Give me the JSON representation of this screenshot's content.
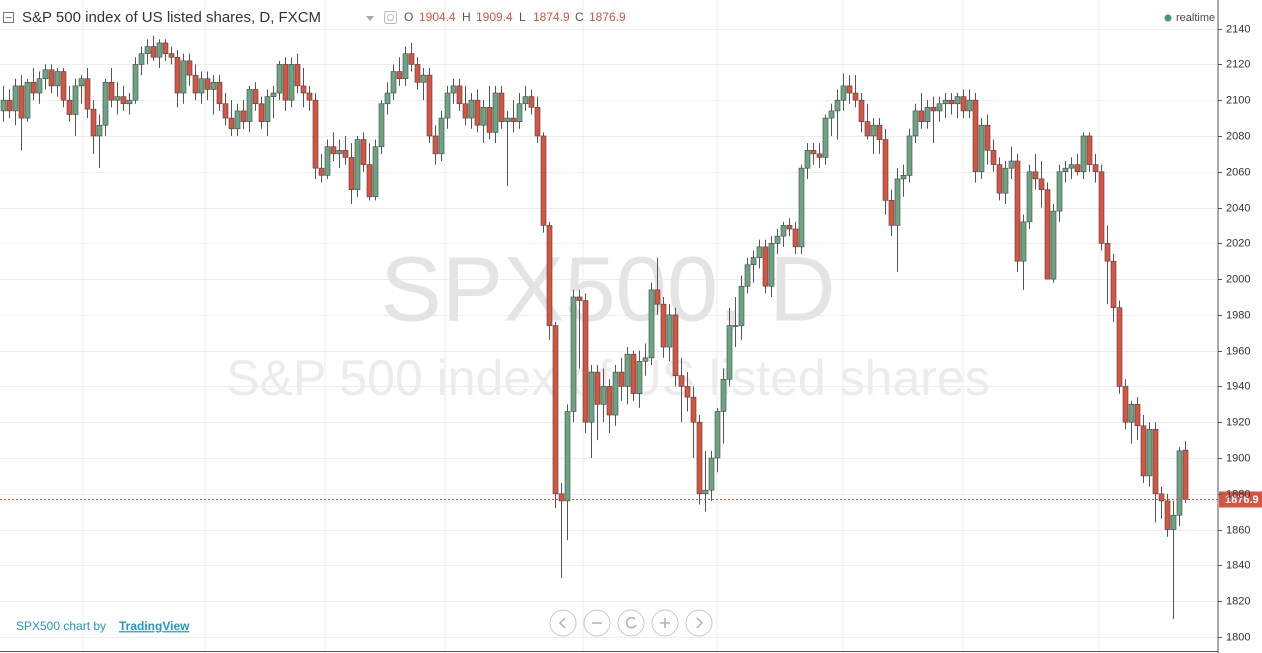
{
  "chart_data": {
    "type": "candlestick",
    "title": "S&P 500 index of US listed shares, D, FXCM",
    "status": "realtime",
    "watermark_symbol": "SPX500, D",
    "watermark_name": "S&P 500 index of US listed shares",
    "credit": "SPX500 chart by",
    "credit_link": "TradingView",
    "ohlc_labels": [
      "O",
      "H",
      "L",
      "C"
    ],
    "up_color": "#6ba583",
    "down_color": "#d75442",
    "ylim": [
      1791,
      2156
    ],
    "yticks": [
      1800,
      1820,
      1840,
      1860,
      1880,
      1900,
      1920,
      1940,
      1960,
      1980,
      2000,
      2020,
      2040,
      2060,
      2080,
      2100,
      2120,
      2140
    ],
    "grid": true,
    "ohlc": [
      [
        2094,
        2108,
        2088,
        2100
      ],
      [
        2100,
        2106,
        2090,
        2094
      ],
      [
        2094,
        2112,
        2086,
        2108
      ],
      [
        2108,
        2114,
        2072,
        2090
      ],
      [
        2090,
        2112,
        2088,
        2110
      ],
      [
        2110,
        2118,
        2100,
        2104
      ],
      [
        2104,
        2116,
        2098,
        2112
      ],
      [
        2112,
        2120,
        2106,
        2117
      ],
      [
        2117,
        2120,
        2104,
        2108
      ],
      [
        2108,
        2118,
        2102,
        2116
      ],
      [
        2116,
        2118,
        2096,
        2100
      ],
      [
        2100,
        2108,
        2088,
        2092
      ],
      [
        2092,
        2112,
        2080,
        2108
      ],
      [
        2108,
        2114,
        2098,
        2112
      ],
      [
        2112,
        2118,
        2090,
        2095
      ],
      [
        2095,
        2100,
        2070,
        2080
      ],
      [
        2080,
        2092,
        2062,
        2086
      ],
      [
        2086,
        2112,
        2080,
        2110
      ],
      [
        2110,
        2118,
        2096,
        2100
      ],
      [
        2100,
        2110,
        2092,
        2102
      ],
      [
        2102,
        2108,
        2094,
        2098
      ],
      [
        2098,
        2104,
        2092,
        2100
      ],
      [
        2100,
        2124,
        2098,
        2120
      ],
      [
        2120,
        2130,
        2114,
        2126
      ],
      [
        2126,
        2134,
        2120,
        2130
      ],
      [
        2130,
        2136,
        2122,
        2124
      ],
      [
        2124,
        2134,
        2118,
        2132
      ],
      [
        2132,
        2134,
        2122,
        2126
      ],
      [
        2126,
        2130,
        2120,
        2124
      ],
      [
        2124,
        2128,
        2096,
        2104
      ],
      [
        2104,
        2126,
        2098,
        2122
      ],
      [
        2122,
        2126,
        2108,
        2114
      ],
      [
        2114,
        2120,
        2100,
        2104
      ],
      [
        2104,
        2116,
        2098,
        2112
      ],
      [
        2112,
        2116,
        2100,
        2106
      ],
      [
        2106,
        2114,
        2092,
        2110
      ],
      [
        2110,
        2114,
        2094,
        2098
      ],
      [
        2098,
        2104,
        2086,
        2090
      ],
      [
        2090,
        2100,
        2080,
        2084
      ],
      [
        2084,
        2098,
        2080,
        2094
      ],
      [
        2094,
        2100,
        2084,
        2088
      ],
      [
        2088,
        2108,
        2082,
        2106
      ],
      [
        2106,
        2110,
        2094,
        2098
      ],
      [
        2098,
        2102,
        2084,
        2088
      ],
      [
        2088,
        2106,
        2080,
        2102
      ],
      [
        2102,
        2108,
        2090,
        2104
      ],
      [
        2104,
        2122,
        2100,
        2120
      ],
      [
        2120,
        2124,
        2094,
        2100
      ],
      [
        2100,
        2124,
        2096,
        2120
      ],
      [
        2120,
        2126,
        2104,
        2108
      ],
      [
        2108,
        2118,
        2096,
        2104
      ],
      [
        2104,
        2108,
        2094,
        2100
      ],
      [
        2100,
        2104,
        2056,
        2062
      ],
      [
        2062,
        2070,
        2054,
        2058
      ],
      [
        2058,
        2078,
        2056,
        2074
      ],
      [
        2074,
        2082,
        2066,
        2070
      ],
      [
        2070,
        2078,
        2062,
        2072
      ],
      [
        2072,
        2080,
        2064,
        2068
      ],
      [
        2068,
        2076,
        2042,
        2050
      ],
      [
        2050,
        2080,
        2046,
        2078
      ],
      [
        2078,
        2082,
        2060,
        2064
      ],
      [
        2064,
        2076,
        2044,
        2046
      ],
      [
        2046,
        2078,
        2044,
        2074
      ],
      [
        2074,
        2100,
        2070,
        2098
      ],
      [
        2098,
        2110,
        2092,
        2104
      ],
      [
        2104,
        2120,
        2100,
        2116
      ],
      [
        2116,
        2124,
        2108,
        2112
      ],
      [
        2112,
        2130,
        2108,
        2126
      ],
      [
        2126,
        2132,
        2116,
        2120
      ],
      [
        2120,
        2124,
        2106,
        2110
      ],
      [
        2110,
        2118,
        2100,
        2114
      ],
      [
        2114,
        2118,
        2076,
        2080
      ],
      [
        2080,
        2086,
        2064,
        2070
      ],
      [
        2070,
        2094,
        2066,
        2090
      ],
      [
        2090,
        2108,
        2084,
        2104
      ],
      [
        2104,
        2112,
        2098,
        2108
      ],
      [
        2108,
        2112,
        2094,
        2098
      ],
      [
        2098,
        2108,
        2086,
        2090
      ],
      [
        2090,
        2104,
        2084,
        2100
      ],
      [
        2100,
        2106,
        2082,
        2086
      ],
      [
        2086,
        2100,
        2076,
        2096
      ],
      [
        2096,
        2108,
        2078,
        2082
      ],
      [
        2082,
        2108,
        2076,
        2104
      ],
      [
        2104,
        2108,
        2084,
        2088
      ],
      [
        2088,
        2094,
        2052,
        2090
      ],
      [
        2090,
        2100,
        2082,
        2088
      ],
      [
        2088,
        2104,
        2084,
        2098
      ],
      [
        2098,
        2108,
        2094,
        2102
      ],
      [
        2102,
        2106,
        2092,
        2096
      ],
      [
        2096,
        2102,
        2076,
        2080
      ],
      [
        2080,
        2082,
        2026,
        2030
      ],
      [
        2030,
        2032,
        1966,
        1974
      ],
      [
        1974,
        1976,
        1872,
        1880
      ],
      [
        1880,
        1886,
        1833,
        1876
      ],
      [
        1876,
        1930,
        1854,
        1926
      ],
      [
        1926,
        1994,
        1920,
        1990
      ],
      [
        1990,
        1994,
        1950,
        1988
      ],
      [
        1988,
        1992,
        1914,
        1920
      ],
      [
        1920,
        1952,
        1900,
        1948
      ],
      [
        1948,
        1952,
        1910,
        1930
      ],
      [
        1930,
        1950,
        1920,
        1940
      ],
      [
        1940,
        1944,
        1914,
        1924
      ],
      [
        1924,
        1952,
        1918,
        1948
      ],
      [
        1948,
        1956,
        1932,
        1940
      ],
      [
        1940,
        1962,
        1930,
        1958
      ],
      [
        1958,
        1960,
        1932,
        1936
      ],
      [
        1936,
        1960,
        1928,
        1954
      ],
      [
        1954,
        1964,
        1946,
        1956
      ],
      [
        1956,
        1998,
        1952,
        1994
      ],
      [
        1994,
        2012,
        1980,
        1986
      ],
      [
        1986,
        1990,
        1956,
        1962
      ],
      [
        1962,
        1986,
        1954,
        1980
      ],
      [
        1980,
        1984,
        1940,
        1946
      ],
      [
        1946,
        1956,
        1920,
        1940
      ],
      [
        1940,
        1948,
        1926,
        1934
      ],
      [
        1934,
        1940,
        1900,
        1920
      ],
      [
        1920,
        1924,
        1874,
        1880
      ],
      [
        1880,
        1904,
        1870,
        1882
      ],
      [
        1882,
        1904,
        1876,
        1900
      ],
      [
        1900,
        1928,
        1892,
        1926
      ],
      [
        1926,
        1950,
        1908,
        1944
      ],
      [
        1944,
        1984,
        1940,
        1974
      ],
      [
        1974,
        1990,
        1962,
        1974
      ],
      [
        1974,
        2002,
        1966,
        1996
      ],
      [
        1996,
        2012,
        1992,
        2008
      ],
      [
        2008,
        2016,
        1998,
        2012
      ],
      [
        2012,
        2022,
        2006,
        2018
      ],
      [
        2018,
        2022,
        1992,
        1996
      ],
      [
        1996,
        2024,
        1990,
        2020
      ],
      [
        2020,
        2028,
        2014,
        2024
      ],
      [
        2024,
        2032,
        2018,
        2030
      ],
      [
        2030,
        2034,
        2024,
        2028
      ],
      [
        2028,
        2032,
        2014,
        2018
      ],
      [
        2018,
        2064,
        2014,
        2062
      ],
      [
        2062,
        2076,
        2056,
        2072
      ],
      [
        2072,
        2076,
        2064,
        2070
      ],
      [
        2070,
        2076,
        2062,
        2068
      ],
      [
        2068,
        2092,
        2064,
        2090
      ],
      [
        2090,
        2098,
        2080,
        2094
      ],
      [
        2094,
        2106,
        2078,
        2100
      ],
      [
        2100,
        2115,
        2094,
        2108
      ],
      [
        2108,
        2114,
        2098,
        2104
      ],
      [
        2104,
        2114,
        2096,
        2100
      ],
      [
        2100,
        2104,
        2082,
        2088
      ],
      [
        2088,
        2098,
        2078,
        2080
      ],
      [
        2080,
        2090,
        2070,
        2086
      ],
      [
        2086,
        2090,
        2070,
        2078
      ],
      [
        2078,
        2084,
        2036,
        2044
      ],
      [
        2044,
        2050,
        2024,
        2030
      ],
      [
        2030,
        2062,
        2004,
        2056
      ],
      [
        2056,
        2064,
        2046,
        2058
      ],
      [
        2058,
        2084,
        2054,
        2080
      ],
      [
        2080,
        2098,
        2076,
        2094
      ],
      [
        2094,
        2104,
        2084,
        2088
      ],
      [
        2088,
        2100,
        2084,
        2096
      ],
      [
        2096,
        2102,
        2076,
        2094
      ],
      [
        2094,
        2102,
        2088,
        2098
      ],
      [
        2098,
        2104,
        2090,
        2100
      ],
      [
        2100,
        2104,
        2092,
        2098
      ],
      [
        2098,
        2104,
        2090,
        2102
      ],
      [
        2102,
        2106,
        2090,
        2094
      ],
      [
        2094,
        2106,
        2090,
        2100
      ],
      [
        2100,
        2104,
        2054,
        2060
      ],
      [
        2060,
        2090,
        2056,
        2086
      ],
      [
        2086,
        2092,
        2064,
        2072
      ],
      [
        2072,
        2078,
        2060,
        2064
      ],
      [
        2064,
        2068,
        2044,
        2048
      ],
      [
        2048,
        2066,
        2042,
        2062
      ],
      [
        2062,
        2074,
        2056,
        2066
      ],
      [
        2066,
        2070,
        2004,
        2010
      ],
      [
        2010,
        2036,
        1994,
        2032
      ],
      [
        2032,
        2064,
        2028,
        2060
      ],
      [
        2060,
        2070,
        2050,
        2056
      ],
      [
        2056,
        2066,
        2040,
        2050
      ],
      [
        2050,
        2054,
        2000,
        2000
      ],
      [
        2000,
        2042,
        1998,
        2038
      ],
      [
        2038,
        2064,
        2032,
        2060
      ],
      [
        2060,
        2066,
        2054,
        2062
      ],
      [
        2062,
        2068,
        2056,
        2064
      ],
      [
        2064,
        2070,
        2058,
        2060
      ],
      [
        2060,
        2082,
        2056,
        2080
      ],
      [
        2080,
        2082,
        2060,
        2064
      ],
      [
        2064,
        2070,
        2054,
        2060
      ],
      [
        2060,
        2064,
        2016,
        2020
      ],
      [
        2020,
        2030,
        1986,
        2010
      ],
      [
        2010,
        2014,
        1976,
        1984
      ],
      [
        1984,
        1988,
        1936,
        1940
      ],
      [
        1940,
        1944,
        1916,
        1920
      ],
      [
        1920,
        1932,
        1908,
        1930
      ],
      [
        1930,
        1934,
        1910,
        1918
      ],
      [
        1918,
        1924,
        1886,
        1890
      ],
      [
        1890,
        1920,
        1884,
        1916
      ],
      [
        1916,
        1920,
        1864,
        1880
      ],
      [
        1880,
        1884,
        1866,
        1876
      ],
      [
        1876,
        1880,
        1856,
        1860
      ],
      [
        1860,
        1876,
        1810,
        1868
      ],
      [
        1868,
        1906,
        1862,
        1904
      ],
      [
        1904.4,
        1909.4,
        1874.9,
        1876.9
      ]
    ]
  }
}
